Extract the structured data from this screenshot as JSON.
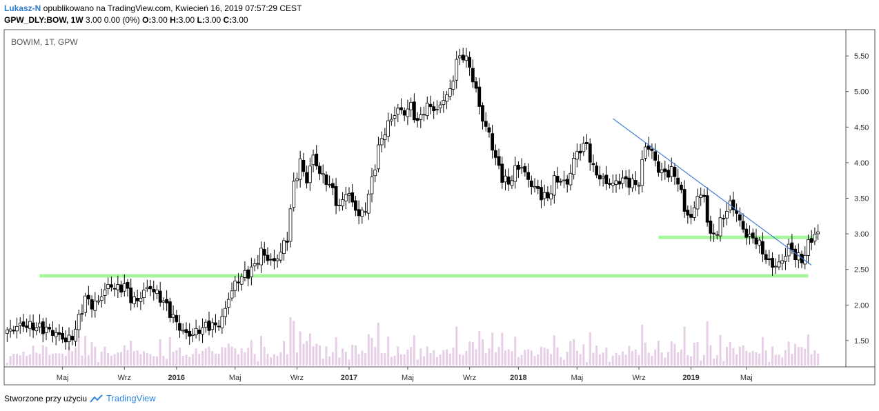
{
  "header": {
    "author": "Lukasz-N",
    "published_text": " opublikowano na TradingView.com, Kwiecień 16, 2019 07:57:29 CEST",
    "symbol": "GPW_DLY:BOW, 1W",
    "price_info": " 3.00 0.00 (0%) ",
    "o_label": "O:",
    "o_value": "3.00",
    "h_label": "H:",
    "h_value": "3.00",
    "l_label": "L:",
    "l_value": "3.00",
    "c_label": "C:",
    "c_value": "3.00"
  },
  "footer": {
    "created_with": "Stworzone przy użyciu",
    "brand": "TradingView"
  },
  "chart_data": {
    "type": "candlestick",
    "title": "BOWIM, 1T, GPW",
    "ylim": [
      1.15,
      5.85
    ],
    "y_ticks": [
      "1.50",
      "2.00",
      "2.50",
      "3.00",
      "3.50",
      "4.00",
      "4.50",
      "5.00",
      "5.50"
    ],
    "x_ticks": [
      "Maj",
      "Wrz",
      "2016",
      "Maj",
      "Wrz",
      "2017",
      "Maj",
      "Wrz",
      "2018",
      "Maj",
      "Wrz",
      "2019",
      "Maj"
    ],
    "grid": false,
    "colors": {
      "up": "#ffffff",
      "down": "#000000",
      "wick": "#000000",
      "volume": "#e6cfe6",
      "support": "#a8f5a0",
      "trendline": "#3f7fd6"
    },
    "price_path": [
      [
        0,
        1.62
      ],
      [
        4,
        1.72
      ],
      [
        8,
        1.7
      ],
      [
        12,
        1.66
      ],
      [
        16,
        1.57
      ],
      [
        18,
        1.5
      ],
      [
        20,
        1.55
      ],
      [
        22,
        1.8
      ],
      [
        24,
        2.1
      ],
      [
        26,
        2.0
      ],
      [
        28,
        2.05
      ],
      [
        30,
        2.22
      ],
      [
        32,
        2.28
      ],
      [
        34,
        2.22
      ],
      [
        36,
        2.28
      ],
      [
        38,
        2.1
      ],
      [
        40,
        2.05
      ],
      [
        42,
        2.2
      ],
      [
        44,
        2.25
      ],
      [
        46,
        2.15
      ],
      [
        48,
        2.05
      ],
      [
        50,
        1.9
      ],
      [
        52,
        1.75
      ],
      [
        54,
        1.62
      ],
      [
        56,
        1.58
      ],
      [
        58,
        1.62
      ],
      [
        60,
        1.68
      ],
      [
        62,
        1.72
      ],
      [
        64,
        1.7
      ],
      [
        66,
        1.8
      ],
      [
        68,
        2.1
      ],
      [
        70,
        2.3
      ],
      [
        72,
        2.4
      ],
      [
        74,
        2.45
      ],
      [
        76,
        2.55
      ],
      [
        78,
        2.75
      ],
      [
        80,
        2.65
      ],
      [
        82,
        2.6
      ],
      [
        84,
        2.75
      ],
      [
        86,
        2.95
      ],
      [
        88,
        3.7
      ],
      [
        90,
        4.0
      ],
      [
        92,
        3.75
      ],
      [
        94,
        4.1
      ],
      [
        96,
        3.85
      ],
      [
        98,
        3.75
      ],
      [
        100,
        3.6
      ],
      [
        102,
        3.35
      ],
      [
        104,
        3.6
      ],
      [
        106,
        3.45
      ],
      [
        108,
        3.25
      ],
      [
        110,
        3.35
      ],
      [
        112,
        3.75
      ],
      [
        114,
        4.2
      ],
      [
        116,
        4.45
      ],
      [
        118,
        4.62
      ],
      [
        120,
        4.75
      ],
      [
        122,
        4.7
      ],
      [
        124,
        4.8
      ],
      [
        126,
        4.55
      ],
      [
        128,
        4.75
      ],
      [
        130,
        4.8
      ],
      [
        132,
        4.72
      ],
      [
        134,
        4.9
      ],
      [
        136,
        5.0
      ],
      [
        138,
        5.42
      ],
      [
        140,
        5.52
      ],
      [
        142,
        5.35
      ],
      [
        144,
        5.0
      ],
      [
        146,
        4.6
      ],
      [
        148,
        4.4
      ],
      [
        150,
        4.05
      ],
      [
        152,
        3.8
      ],
      [
        154,
        3.7
      ],
      [
        156,
        3.9
      ],
      [
        158,
        3.95
      ],
      [
        160,
        3.75
      ],
      [
        162,
        3.65
      ],
      [
        164,
        3.55
      ],
      [
        166,
        3.5
      ],
      [
        168,
        3.75
      ],
      [
        170,
        3.75
      ],
      [
        172,
        3.7
      ],
      [
        174,
        4.05
      ],
      [
        176,
        4.2
      ],
      [
        178,
        4.25
      ],
      [
        180,
        3.9
      ],
      [
        182,
        3.8
      ],
      [
        184,
        3.72
      ],
      [
        186,
        3.7
      ],
      [
        188,
        3.75
      ],
      [
        190,
        3.75
      ],
      [
        192,
        3.7
      ],
      [
        194,
        3.72
      ],
      [
        196,
        4.25
      ],
      [
        198,
        4.15
      ],
      [
        200,
        3.9
      ],
      [
        202,
        3.85
      ],
      [
        204,
        3.88
      ],
      [
        206,
        3.75
      ],
      [
        208,
        3.35
      ],
      [
        210,
        3.2
      ],
      [
        212,
        3.55
      ],
      [
        214,
        3.5
      ],
      [
        216,
        2.95
      ],
      [
        218,
        3.05
      ],
      [
        220,
        3.25
      ],
      [
        222,
        3.42
      ],
      [
        224,
        3.3
      ],
      [
        226,
        3.05
      ],
      [
        228,
        2.95
      ],
      [
        230,
        2.92
      ],
      [
        232,
        2.75
      ],
      [
        234,
        2.58
      ],
      [
        236,
        2.55
      ],
      [
        238,
        2.62
      ],
      [
        240,
        2.82
      ],
      [
        242,
        2.7
      ],
      [
        244,
        2.62
      ],
      [
        246,
        2.85
      ],
      [
        248,
        3.0
      ]
    ],
    "support_levels": [
      {
        "price": 2.41,
        "from_week": 10,
        "to_week": 246
      },
      {
        "price": 2.95,
        "from_week": 200,
        "to_week": 249
      }
    ],
    "trendline": {
      "from": [
        186,
        4.62
      ],
      "to": [
        247,
        2.56
      ]
    }
  }
}
